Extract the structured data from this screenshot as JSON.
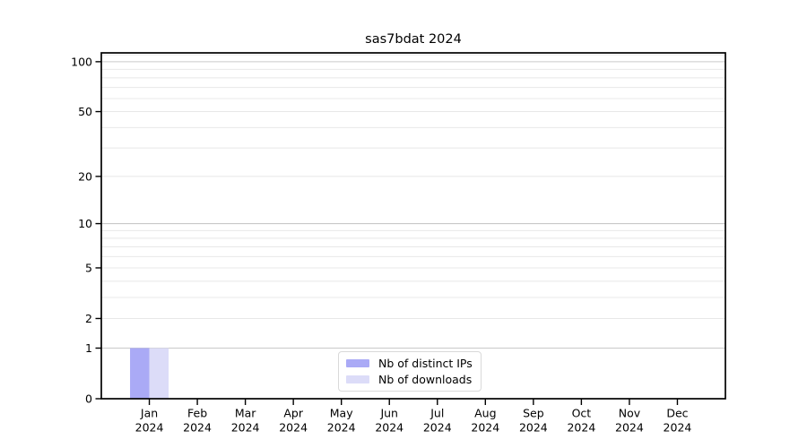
{
  "chart_data": {
    "type": "bar",
    "title": "sas7bdat 2024",
    "categories": [
      "Jan 2024",
      "Feb 2024",
      "Mar 2024",
      "Apr 2024",
      "May 2024",
      "Jun 2024",
      "Jul 2024",
      "Aug 2024",
      "Sep 2024",
      "Oct 2024",
      "Nov 2024",
      "Dec 2024"
    ],
    "month_labels": [
      "Jan",
      "Feb",
      "Mar",
      "Apr",
      "May",
      "Jun",
      "Jul",
      "Aug",
      "Sep",
      "Oct",
      "Nov",
      "Dec"
    ],
    "year_label": "2024",
    "series": [
      {
        "name": "Nb of distinct IPs",
        "color": "#aaaaf6",
        "values": [
          1,
          0,
          0,
          0,
          0,
          0,
          0,
          0,
          0,
          0,
          0,
          0
        ]
      },
      {
        "name": "Nb of downloads",
        "color": "#dcdcf8",
        "values": [
          1,
          0,
          0,
          0,
          0,
          0,
          0,
          0,
          0,
          0,
          0,
          0
        ]
      }
    ],
    "yscale": "log1p",
    "ylim": [
      0,
      113
    ],
    "y_tick_values": [
      0,
      1,
      2,
      5,
      10,
      20,
      50,
      100
    ],
    "y_tick_labels": [
      "0",
      "1",
      "2",
      "5",
      "10",
      "20",
      "50",
      "100"
    ],
    "decade_gridlines": [
      1,
      10,
      100
    ],
    "minor_gridlines": [
      2,
      3,
      4,
      5,
      6,
      7,
      8,
      9,
      20,
      30,
      40,
      50,
      60,
      70,
      80,
      90,
      110
    ],
    "grid": true,
    "legend_position": "lower center",
    "colors": {
      "major_grid": "#c9c9c9",
      "minor_grid": "#e8e8e8",
      "axis": "#000000",
      "text": "#000000",
      "background": "#ffffff"
    }
  }
}
